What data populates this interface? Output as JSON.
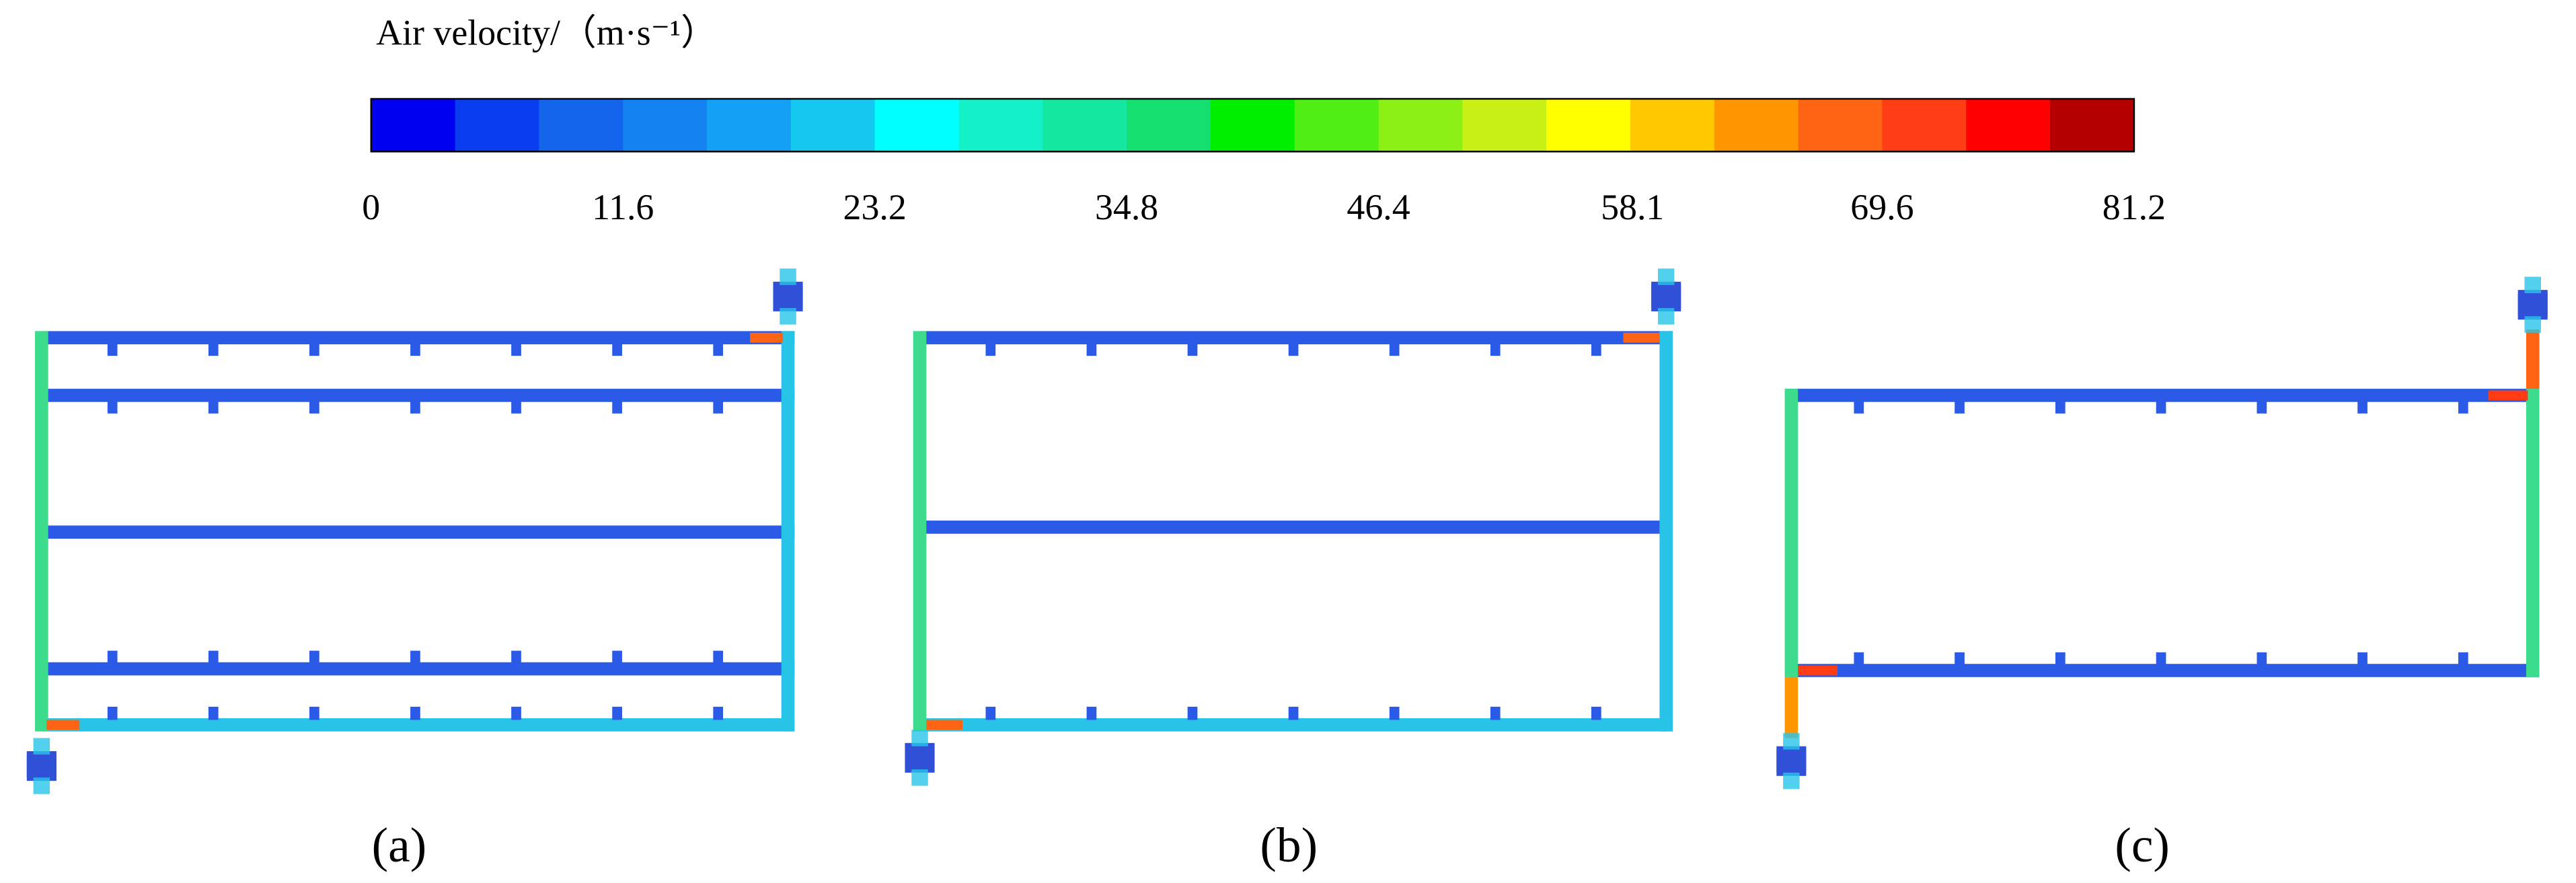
{
  "colorbar": {
    "title": "Air velocity/（m·s⁻¹）",
    "ticks": [
      0,
      11.6,
      23.2,
      34.8,
      46.4,
      58.1,
      69.6,
      81.2
    ],
    "colors": [
      "#0000f0",
      "#0a3cf0",
      "#1464ec",
      "#1482f0",
      "#14a0f4",
      "#14c8f0",
      "#00ffff",
      "#14f0c8",
      "#14e8a0",
      "#14e070",
      "#00ee00",
      "#50ee14",
      "#8cf014",
      "#c8f014",
      "#ffff00",
      "#ffc800",
      "#ff9600",
      "#ff6414",
      "#ff3c14",
      "#ff0000",
      "#b40000"
    ]
  },
  "panels": [
    {
      "label": "(a)"
    },
    {
      "label": "(b)"
    },
    {
      "label": "(c)"
    }
  ]
}
